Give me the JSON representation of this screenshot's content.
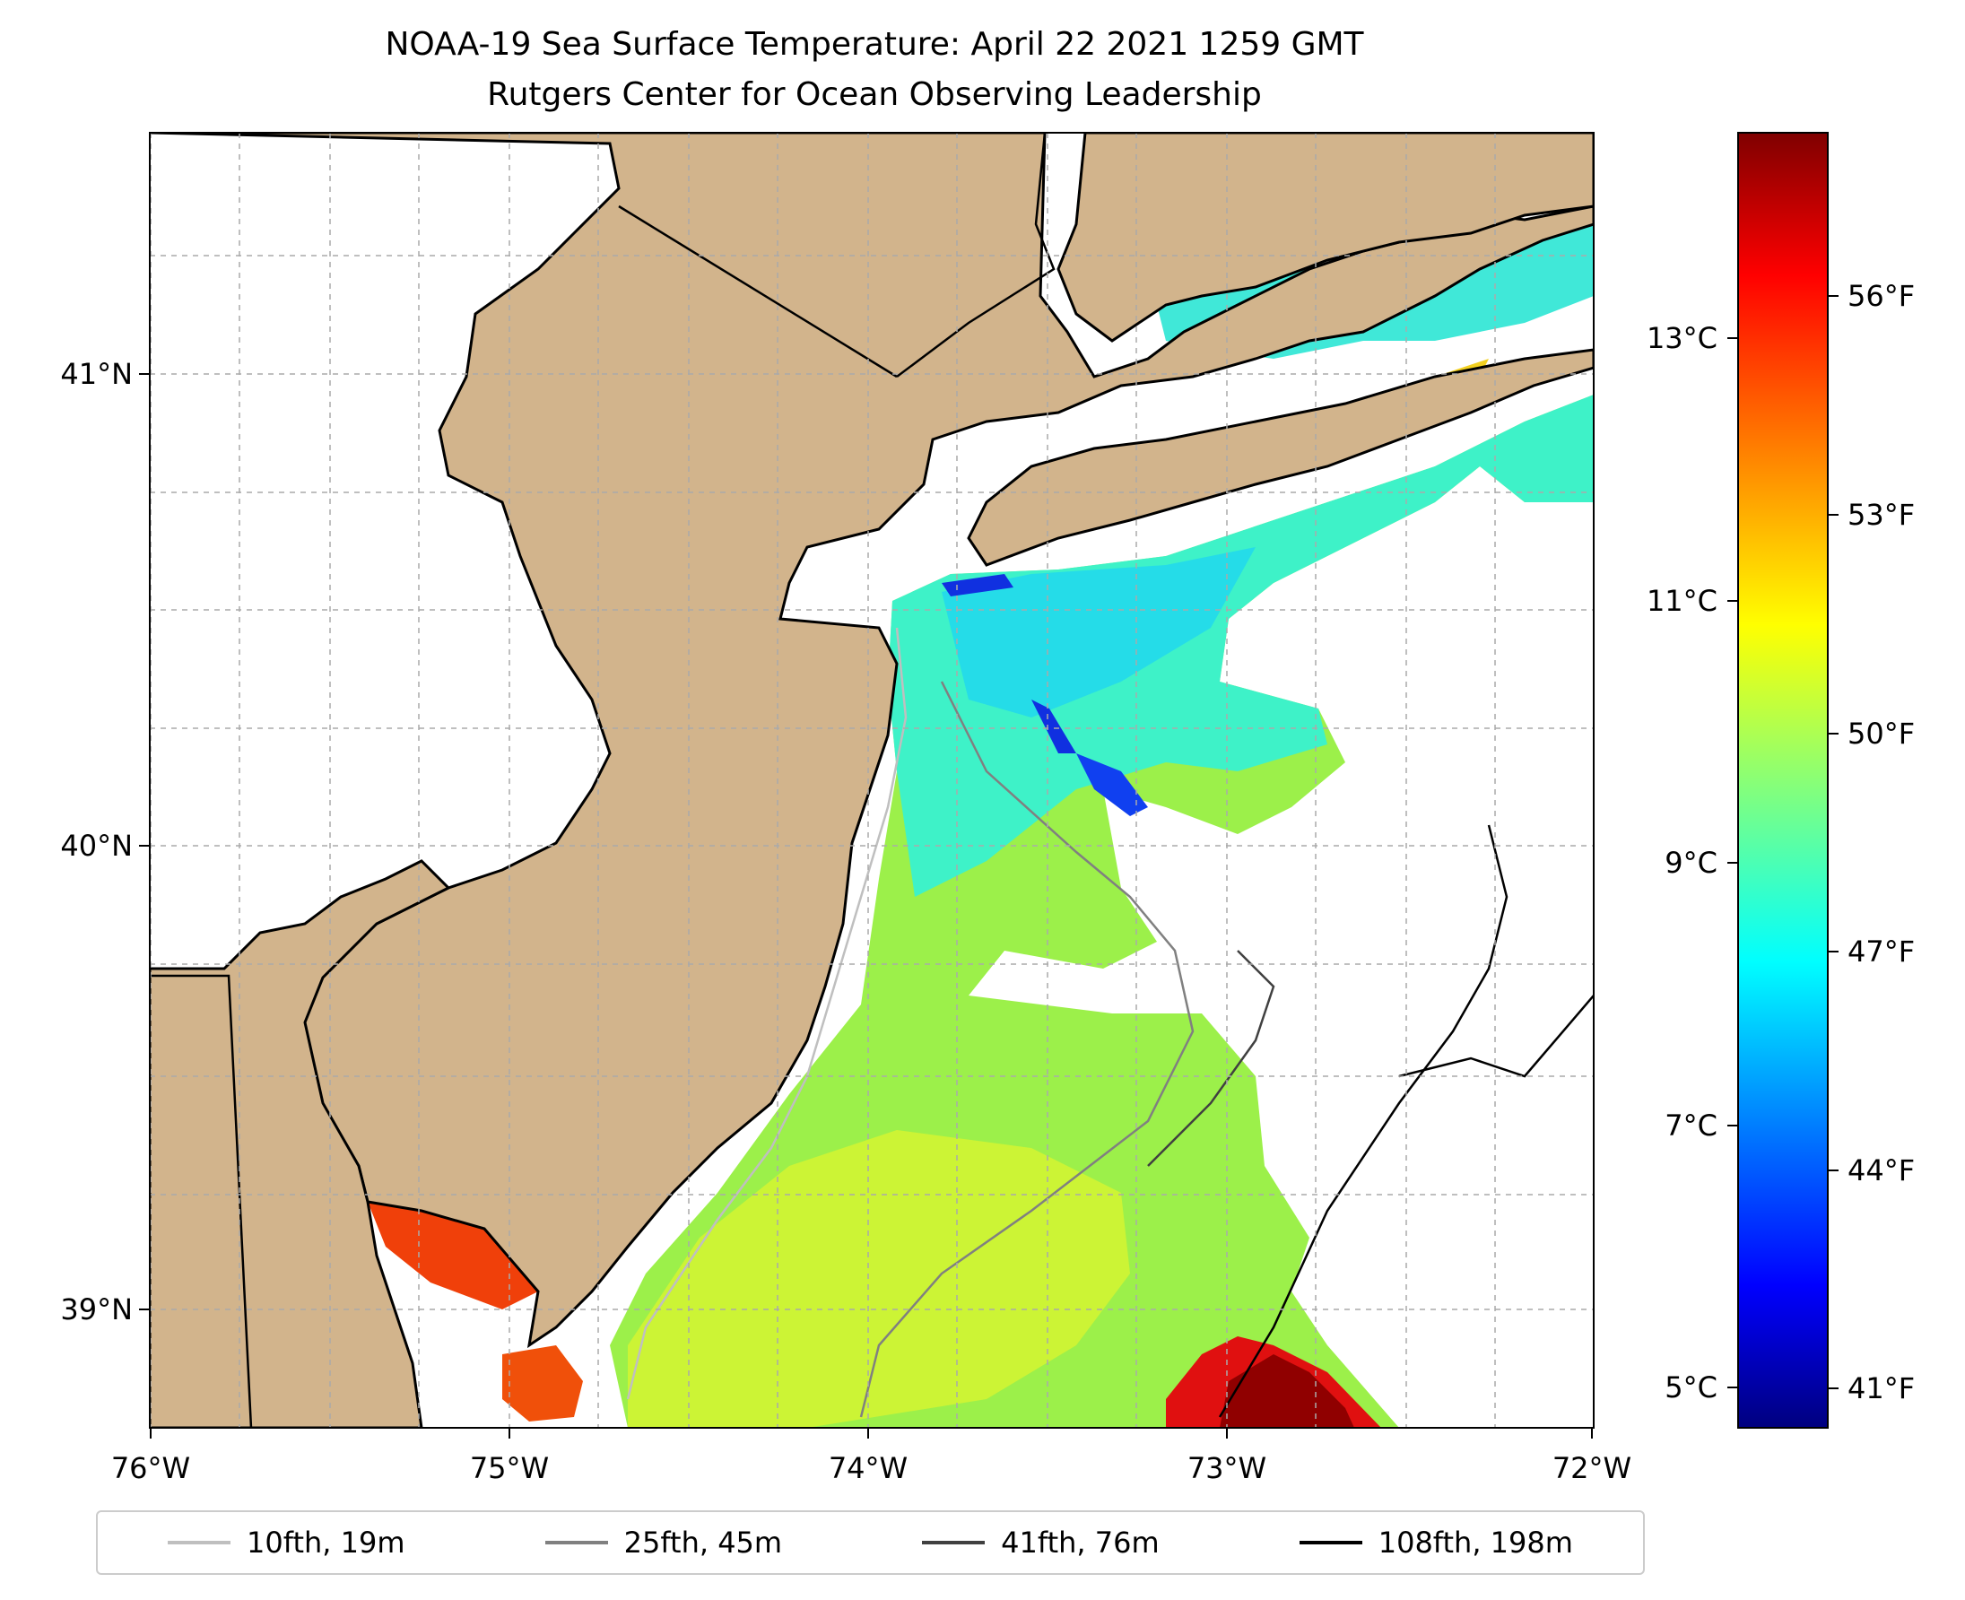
{
  "title": {
    "line1": "NOAA-19 Sea Surface Temperature: April 22 2021 1259 GMT",
    "line2": "Rutgers Center for Ocean Observing Leadership"
  },
  "map": {
    "lon_ticks": [
      "76°W",
      "75°W",
      "74°W",
      "73°W",
      "72°W"
    ],
    "lat_ticks": [
      "41°N",
      "40°N",
      "39°N"
    ],
    "lon_range": [
      -76,
      -72
    ],
    "lat_range": [
      38.75,
      41.5
    ],
    "land_color": "#d2b48c",
    "grid": true
  },
  "colorbar": {
    "celsius_ticks": [
      "13°C",
      "11°C",
      "9°C",
      "7°C",
      "5°C"
    ],
    "fahrenheit_ticks": [
      "56°F",
      "53°F",
      "50°F",
      "47°F",
      "44°F",
      "41°F"
    ],
    "colormap": "jet",
    "range_celsius": [
      4.7,
      14.6
    ]
  },
  "legend": {
    "items": [
      {
        "label": "10fth, 19m",
        "color": "#bfbfbf"
      },
      {
        "label": "25fth, 45m",
        "color": "#808080"
      },
      {
        "label": "41fth, 76m",
        "color": "#404040"
      },
      {
        "label": "108fth, 198m",
        "color": "#000000"
      }
    ]
  }
}
